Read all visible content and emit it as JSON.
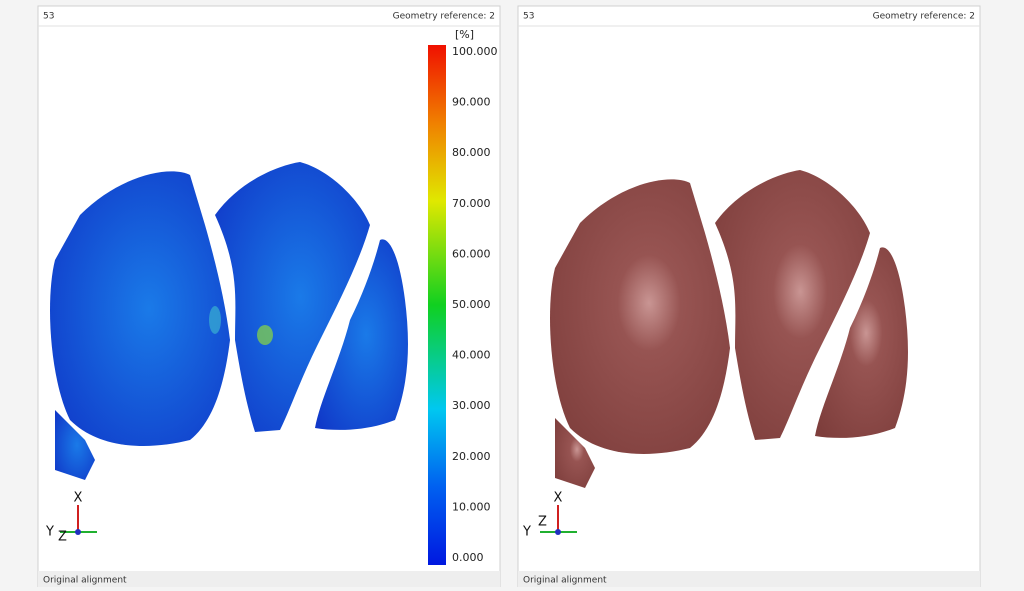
{
  "panels": [
    {
      "id": "53",
      "geometry_reference": "Geometry reference: 2",
      "colorbar": {
        "unit": "[%]",
        "ticks": [
          "100.000",
          "90.000",
          "80.000",
          "70.000",
          "60.000",
          "50.000",
          "40.000",
          "30.000",
          "20.000",
          "10.000",
          "0.000"
        ]
      },
      "triad": {
        "x": "X",
        "y": "Y",
        "z": "Z"
      },
      "footer": "Original alignment"
    },
    {
      "id": "53",
      "geometry_reference": "Geometry reference: 2",
      "triad": {
        "x": "X",
        "y": "Y",
        "z": "Z"
      },
      "footer": "Original alignment"
    }
  ]
}
